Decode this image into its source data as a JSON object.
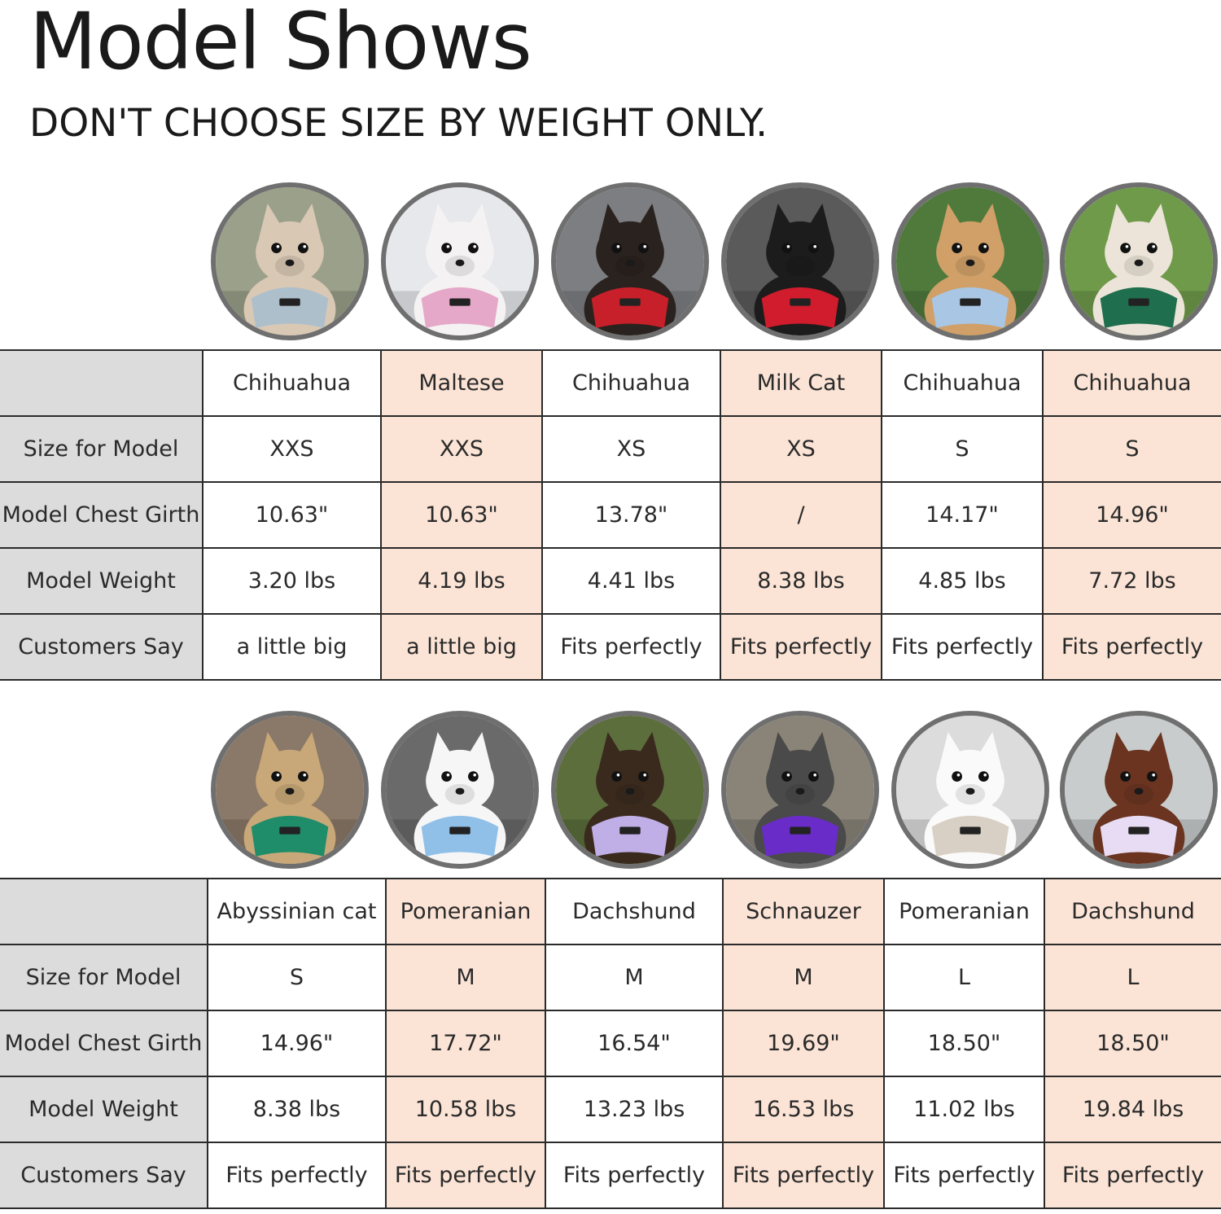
{
  "title": "Model Shows",
  "subtitle": "DON'T CHOOSE SIZE BY WEIGHT ONLY.",
  "row_labels": [
    "Size for Model",
    "Model Chest Girth",
    "Model Weight",
    "Customers Say"
  ],
  "sections": [
    {
      "models": [
        {
          "breed": "Chihuahua",
          "size": "XXS",
          "chest": "10.63\"",
          "weight": "3.20 lbs",
          "say": "a little big",
          "harness_color": "#aebfcc",
          "fur_color": "#d9c8b4"
        },
        {
          "breed": "Maltese",
          "size": "XXS",
          "chest": "10.63\"",
          "weight": "4.19 lbs",
          "say": "a little big",
          "harness_color": "#e5a8c8",
          "fur_color": "#f4f2f2"
        },
        {
          "breed": "Chihuahua",
          "size": "XS",
          "chest": "13.78\"",
          "weight": "4.41 lbs",
          "say": "Fits perfectly",
          "harness_color": "#c8202a",
          "fur_color": "#2a221e"
        },
        {
          "breed": "Milk Cat",
          "size": "XS",
          "chest": "/",
          "weight": "8.38 lbs",
          "say": "Fits perfectly",
          "harness_color": "#d01c2c",
          "fur_color": "#1c1c1c"
        },
        {
          "breed": "Chihuahua",
          "size": "S",
          "chest": "14.17\"",
          "weight": "4.85 lbs",
          "say": "Fits perfectly",
          "harness_color": "#a9c6e4",
          "fur_color": "#d0a068"
        },
        {
          "breed": "Chihuahua",
          "size": "S",
          "chest": "14.96\"",
          "weight": "7.72 lbs",
          "say": "Fits perfectly",
          "harness_color": "#1f6e4e",
          "fur_color": "#ece4d8"
        }
      ]
    },
    {
      "models": [
        {
          "breed": "Abyssinian cat",
          "size": "S",
          "chest": "14.96\"",
          "weight": "8.38 lbs",
          "say": "Fits perfectly",
          "harness_color": "#1f8c6a",
          "fur_color": "#c8a878"
        },
        {
          "breed": "Pomeranian",
          "size": "M",
          "chest": "17.72\"",
          "weight": "10.58 lbs",
          "say": "Fits perfectly",
          "harness_color": "#90c0e8",
          "fur_color": "#f6f6f6"
        },
        {
          "breed": "Dachshund",
          "size": "M",
          "chest": "16.54\"",
          "weight": "13.23 lbs",
          "say": "Fits perfectly",
          "harness_color": "#c0aee6",
          "fur_color": "#3a2a1e"
        },
        {
          "breed": "Schnauzer",
          "size": "M",
          "chest": "19.69\"",
          "weight": "16.53 lbs",
          "say": "Fits perfectly",
          "harness_color": "#6a2cc8",
          "fur_color": "#4a4a4a"
        },
        {
          "breed": "Pomeranian",
          "size": "L",
          "chest": "18.50\"",
          "weight": "11.02 lbs",
          "say": "Fits perfectly",
          "harness_color": "#d8d0c4",
          "fur_color": "#fafafa"
        },
        {
          "breed": "Dachshund",
          "size": "L",
          "chest": "18.50\"",
          "weight": "19.84 lbs",
          "say": "Fits perfectly",
          "harness_color": "#e8dcf4",
          "fur_color": "#6a3420"
        }
      ]
    }
  ],
  "colors": {
    "row_header_bg": "#dcdcdc",
    "peach_bg": "#fbe4d6",
    "circle_border": "#6f6f6f"
  }
}
